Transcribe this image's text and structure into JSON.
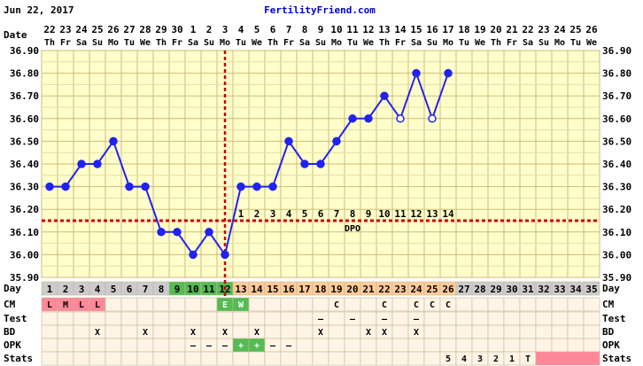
{
  "header": {
    "date": "Jun 22, 2017",
    "site": "FertilityFriend.com"
  },
  "labels": {
    "date_row": "Date",
    "day_row": "Day",
    "cm_row": "CM",
    "test_row": "Test",
    "bd_row": "BD",
    "opk_row": "OPK",
    "stats_row": "Stats",
    "dpo": "DPO"
  },
  "colors": {
    "chart_bg": "#ffffcc",
    "grid": "#ccbb77",
    "line": "#2222ee",
    "coverline": "#cc0000",
    "ovulation_line": "#cc0000",
    "menses": "#ff8899",
    "fertile": "#55bb55",
    "luteal": "#ffcc99",
    "stats_bar": "#ff8899",
    "table_bg": "#fff5e6",
    "day_grey": "#cccccc"
  },
  "chart_data": {
    "type": "line",
    "ylim": [
      35.9,
      36.9
    ],
    "yticks": [
      "35.90",
      "36.00",
      "36.10",
      "36.20",
      "36.30",
      "36.40",
      "36.50",
      "36.60",
      "36.70",
      "36.80",
      "36.90"
    ],
    "dates": [
      "22",
      "23",
      "24",
      "25",
      "26",
      "27",
      "28",
      "29",
      "30",
      "1",
      "2",
      "3",
      "4",
      "5",
      "6",
      "7",
      "8",
      "9",
      "10",
      "11",
      "12",
      "13",
      "14",
      "15",
      "16",
      "17",
      "18",
      "19",
      "20",
      "21",
      "22",
      "23",
      "24",
      "25",
      "26"
    ],
    "weekdays": [
      "Th",
      "Fr",
      "Sa",
      "Su",
      "Mo",
      "Tu",
      "We",
      "Th",
      "Fr",
      "Sa",
      "Su",
      "Mo",
      "Tu",
      "We",
      "Th",
      "Fr",
      "Sa",
      "Su",
      "Mo",
      "Tu",
      "We",
      "Th",
      "Fr",
      "Sa",
      "Su",
      "Mo",
      "Tu",
      "We",
      "Th",
      "Fr",
      "Sa",
      "Su",
      "Mo",
      "Tu",
      "We"
    ],
    "days": [
      1,
      2,
      3,
      4,
      5,
      6,
      7,
      8,
      9,
      10,
      11,
      12,
      13,
      14,
      15,
      16,
      17,
      18,
      19,
      20,
      21,
      22,
      23,
      24,
      25,
      26,
      27,
      28,
      29,
      30,
      31,
      32,
      33,
      34,
      35
    ],
    "temps": [
      36.3,
      36.3,
      36.4,
      36.4,
      36.5,
      36.3,
      36.3,
      36.1,
      36.1,
      36.0,
      36.1,
      36.0,
      36.3,
      36.3,
      36.3,
      36.5,
      36.4,
      36.4,
      36.5,
      36.6,
      36.6,
      36.7,
      36.6,
      36.8,
      36.6,
      36.8
    ],
    "open_points": [
      23,
      25
    ],
    "coverline": 36.15,
    "ovulation_day": 12,
    "dpo_labels": [
      "1",
      "2",
      "3",
      "4",
      "5",
      "6",
      "7",
      "8",
      "9",
      "10",
      "11",
      "12",
      "13",
      "14"
    ],
    "day_highlight": {
      "menses": [
        1,
        2,
        3,
        4
      ],
      "fertile": [
        9,
        10,
        11,
        12
      ],
      "luteal": [
        13,
        14,
        15,
        16,
        17,
        18,
        19,
        20,
        21,
        22,
        23,
        24,
        25,
        26
      ]
    },
    "cm": {
      "1": "L",
      "2": "M",
      "3": "L",
      "4": "L",
      "12": "E",
      "13": "W",
      "19": "C",
      "22": "C",
      "24": "C",
      "25": "C",
      "26": "C"
    },
    "cm_colored": {
      "1": "#ff8899",
      "2": "#ff8899",
      "3": "#ff8899",
      "4": "#ff8899",
      "12": "#55bb55",
      "13": "#55bb55"
    },
    "test": {
      "18": "–",
      "20": "–",
      "22": "–",
      "24": "–"
    },
    "bd": {
      "4": "X",
      "7": "X",
      "10": "X",
      "12": "X",
      "14": "X",
      "18": "X",
      "21": "X",
      "22": "X",
      "24": "X"
    },
    "opk": {
      "10": "–",
      "11": "–",
      "12": "–",
      "13": "+",
      "14": "+",
      "15": "–",
      "16": "–"
    },
    "opk_colored": {
      "13": "#55bb55",
      "14": "#55bb55"
    },
    "stats": {
      "26": "5",
      "27": "4",
      "28": "3",
      "29": "2",
      "30": "1",
      "31": "T"
    },
    "stats_bar_days": [
      32,
      33,
      34,
      35
    ]
  }
}
